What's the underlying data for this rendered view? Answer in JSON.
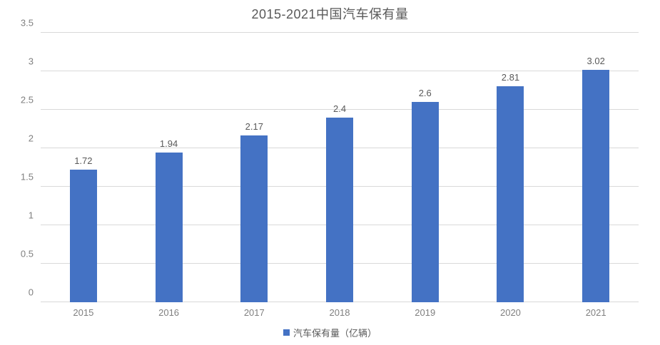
{
  "chart_data": {
    "type": "bar",
    "title": "2015-2021中国汽车保有量",
    "categories": [
      "2015",
      "2016",
      "2017",
      "2018",
      "2019",
      "2020",
      "2021"
    ],
    "values": [
      1.72,
      1.94,
      2.17,
      2.4,
      2.6,
      2.81,
      3.02
    ],
    "data_labels": [
      "1.72",
      "1.94",
      "2.17",
      "2.4",
      "2.6",
      "2.81",
      "3.02"
    ],
    "series_name": "汽车保有量（亿辆）",
    "xlabel": "",
    "ylabel": "",
    "ylim": [
      0,
      3.5
    ],
    "ytick_labels": [
      "0",
      "0.5",
      "1",
      "1.5",
      "2",
      "2.5",
      "3",
      "3.5"
    ],
    "grid": "horizontal",
    "legend_position": "bottom",
    "colors": {
      "bar": "#4472C4",
      "gridline": "#d9d9d9",
      "title_text": "#595959",
      "axis_text": "#7f7f7f",
      "data_label_text": "#595959",
      "background": "#ffffff"
    }
  }
}
